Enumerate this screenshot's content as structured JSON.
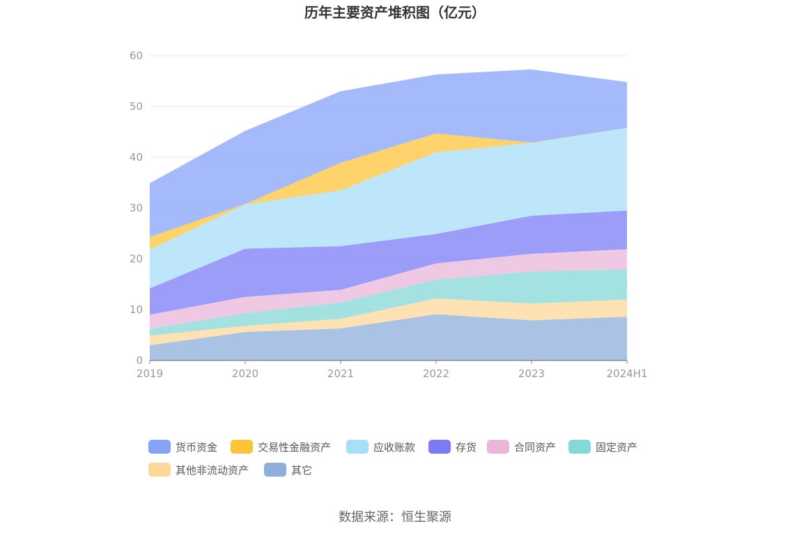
{
  "chart_data": {
    "type": "area",
    "stacked": true,
    "title": "历年主要资产堆积图（亿元）",
    "categories": [
      "2019",
      "2020",
      "2021",
      "2022",
      "2023",
      "2024H1"
    ],
    "ylim": [
      0,
      60
    ],
    "yticks": [
      "0",
      "10",
      "20",
      "30",
      "40",
      "50",
      "60"
    ],
    "grid": true,
    "legend_position": "bottom",
    "series": [
      {
        "name": "其它",
        "color": "#8eaedb",
        "values": [
          3.0,
          5.6,
          6.3,
          9.1,
          7.9,
          8.6
        ]
      },
      {
        "name": "其他非流动资产",
        "color": "#ffd89a",
        "values": [
          1.9,
          1.2,
          1.9,
          3.1,
          3.3,
          3.4
        ]
      },
      {
        "name": "固定资产",
        "color": "#85d8d8",
        "values": [
          1.3,
          2.5,
          3.2,
          3.7,
          6.3,
          5.9
        ]
      },
      {
        "name": "合同资产",
        "color": "#eab7d9",
        "values": [
          2.8,
          3.2,
          2.5,
          3.2,
          3.5,
          4.0
        ]
      },
      {
        "name": "存货",
        "color": "#7b7cf5",
        "values": [
          5.2,
          9.5,
          8.6,
          5.8,
          7.5,
          7.6
        ]
      },
      {
        "name": "应收账款",
        "color": "#a8def8",
        "values": [
          7.6,
          8.7,
          11.0,
          16.1,
          14.3,
          16.3
        ]
      },
      {
        "name": "交易性金融资产",
        "color": "#fdc43a",
        "values": [
          2.5,
          0.1,
          5.4,
          3.7,
          0.1,
          0.0
        ]
      },
      {
        "name": "货币资金",
        "color": "#87a3f8",
        "values": [
          10.6,
          14.4,
          14.1,
          11.6,
          14.4,
          9.0
        ]
      }
    ]
  },
  "legend": [
    {
      "label": "货币资金",
      "color": "#87a3f8"
    },
    {
      "label": "交易性金融资产",
      "color": "#fdc43a"
    },
    {
      "label": "应收账款",
      "color": "#a8def8"
    },
    {
      "label": "存货",
      "color": "#7b7cf5"
    },
    {
      "label": "合同资产",
      "color": "#eab7d9"
    },
    {
      "label": "固定资产",
      "color": "#85d8d8"
    },
    {
      "label": "其他非流动资产",
      "color": "#ffd89a"
    },
    {
      "label": "其它",
      "color": "#8eaedb"
    }
  ],
  "source": "数据来源：恒生聚源"
}
